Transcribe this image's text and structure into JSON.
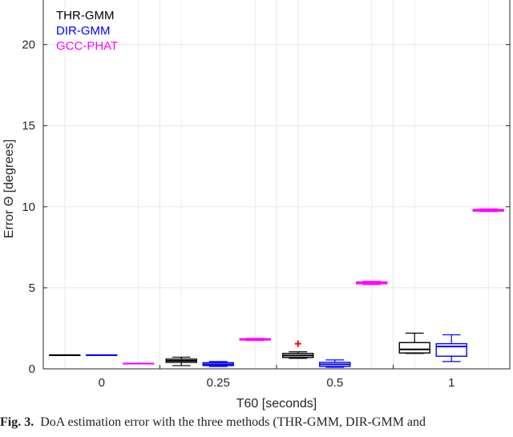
{
  "chart_data": {
    "type": "box",
    "title": "",
    "xlabel": "T60 [seconds]",
    "ylabel": "Error Θ [degrees]",
    "ylim": [
      0,
      23
    ],
    "yticks": [
      0,
      5,
      10,
      15,
      20
    ],
    "categories": [
      "0",
      "0.25",
      "0.5",
      "1"
    ],
    "grid": true,
    "legend_position": "top-left",
    "series": [
      {
        "name": "THR-GMM",
        "color": "#000000",
        "boxes": [
          {
            "min": 0.85,
            "q1": 0.85,
            "median": 0.85,
            "q3": 0.85,
            "max": 0.85,
            "outliers": []
          },
          {
            "min": 0.2,
            "q1": 0.4,
            "median": 0.5,
            "q3": 0.6,
            "max": 0.72,
            "outliers": []
          },
          {
            "min": 0.65,
            "q1": 0.7,
            "median": 0.82,
            "q3": 0.95,
            "max": 1.05,
            "outliers": [
              1.55
            ]
          },
          {
            "min": 0.95,
            "q1": 0.98,
            "median": 1.2,
            "q3": 1.62,
            "max": 2.2,
            "outliers": []
          }
        ]
      },
      {
        "name": "DIR-GMM",
        "color": "#0000ff",
        "boxes": [
          {
            "min": 0.85,
            "q1": 0.85,
            "median": 0.85,
            "q3": 0.85,
            "max": 0.85,
            "outliers": []
          },
          {
            "min": 0.15,
            "q1": 0.2,
            "median": 0.28,
            "q3": 0.38,
            "max": 0.45,
            "outliers": []
          },
          {
            "min": 0.1,
            "q1": 0.15,
            "median": 0.28,
            "q3": 0.4,
            "max": 0.55,
            "outliers": []
          },
          {
            "min": 0.45,
            "q1": 0.78,
            "median": 1.38,
            "q3": 1.55,
            "max": 2.1,
            "outliers": []
          }
        ]
      },
      {
        "name": "GCC-PHAT",
        "color": "#ff00ff",
        "boxes": [
          {
            "min": 0.33,
            "q1": 0.33,
            "median": 0.33,
            "q3": 0.33,
            "max": 0.33,
            "outliers": []
          },
          {
            "min": 1.75,
            "q1": 1.78,
            "median": 1.82,
            "q3": 1.86,
            "max": 1.88,
            "outliers": []
          },
          {
            "min": 5.2,
            "q1": 5.25,
            "median": 5.3,
            "q3": 5.36,
            "max": 5.4,
            "outliers": []
          },
          {
            "min": 9.7,
            "q1": 9.73,
            "median": 9.78,
            "q3": 9.83,
            "max": 9.86,
            "outliers": []
          }
        ]
      }
    ]
  },
  "caption": {
    "label": "Fig. 3.",
    "text": "DoA estimation error with the three methods (THR-GMM, DIR-GMM and"
  }
}
